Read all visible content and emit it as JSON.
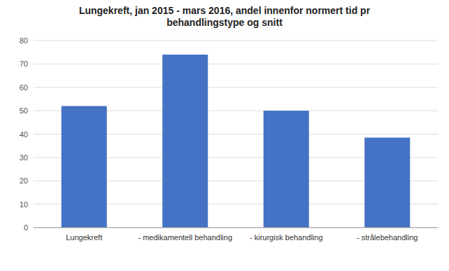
{
  "chart_data": {
    "type": "bar",
    "title": "Lungekreft, jan 2015 - mars 2016, andel innenfor normert tid pr\nbehandlingstype og snitt",
    "categories": [
      "Lungekreft",
      "- medikamentell behandling",
      "- kirurgisk behandling",
      "- strålebehandling"
    ],
    "values": [
      52,
      74,
      50,
      38.5
    ],
    "color": "#4472C4",
    "ylim": [
      0,
      80
    ],
    "yticks": [
      0,
      10,
      20,
      30,
      40,
      50,
      60,
      70,
      80
    ],
    "grid": true
  }
}
